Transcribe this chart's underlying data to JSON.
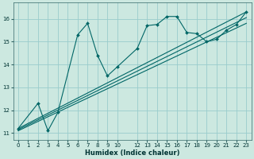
{
  "xlabel": "Humidex (Indice chaleur)",
  "bg_color": "#cce8e0",
  "line_color": "#006666",
  "grid_color": "#99cccc",
  "xlim": [
    -0.5,
    23.5
  ],
  "ylim": [
    10.7,
    16.7
  ],
  "x_ticks": [
    0,
    1,
    2,
    3,
    4,
    5,
    6,
    7,
    8,
    9,
    10,
    12,
    13,
    14,
    15,
    16,
    17,
    18,
    19,
    20,
    21,
    22,
    23
  ],
  "y_ticks": [
    11,
    12,
    13,
    14,
    15,
    16
  ],
  "curve1_x": [
    0,
    2,
    3,
    4,
    6,
    7,
    8,
    9,
    10,
    12,
    13,
    14,
    15,
    16,
    17,
    18,
    19,
    20,
    21,
    22,
    23
  ],
  "curve1_y": [
    11.2,
    12.3,
    11.1,
    11.9,
    15.3,
    15.8,
    14.4,
    13.5,
    13.9,
    14.7,
    15.7,
    15.75,
    16.1,
    16.1,
    15.4,
    15.35,
    15.0,
    15.1,
    15.5,
    15.75,
    16.3
  ],
  "curve2_x": [
    0,
    23
  ],
  "curve2_y": [
    11.2,
    16.3
  ],
  "curve3_x": [
    0,
    23
  ],
  "curve3_y": [
    11.15,
    16.05
  ],
  "curve4_x": [
    0,
    23
  ],
  "curve4_y": [
    11.1,
    15.8
  ]
}
